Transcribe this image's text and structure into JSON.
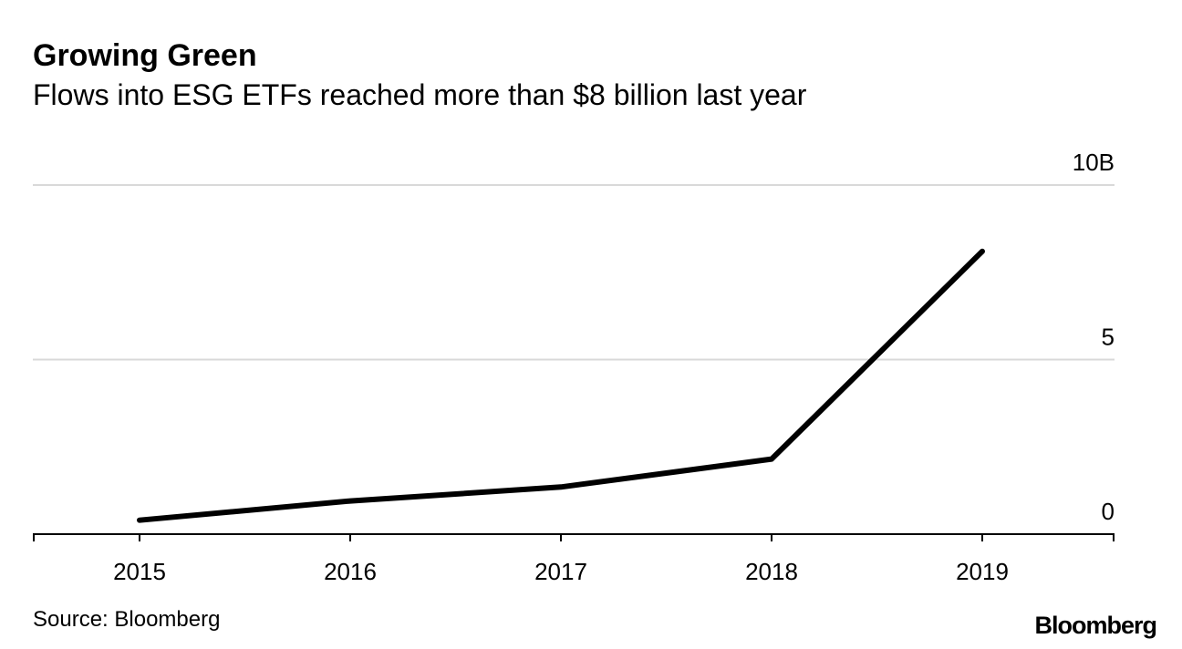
{
  "chart_data": {
    "type": "line",
    "title": "Growing Green",
    "subtitle": "Flows into ESG ETFs reached more than $8 billion last year",
    "categories": [
      "2015",
      "2016",
      "2017",
      "2018",
      "2019"
    ],
    "series": [
      {
        "name": "Flows into ESG ETFs",
        "color": "#000000",
        "values": [
          0.4,
          0.95,
          1.35,
          2.15,
          8.1
        ]
      }
    ],
    "xlabel": "",
    "ylabel": "",
    "ylim": [
      0,
      10
    ],
    "yticks": [
      0,
      5,
      10
    ],
    "ytick_labels": [
      "0",
      "5",
      "10B"
    ],
    "grid": true,
    "axis_side": "right"
  },
  "source": "Source: Bloomberg",
  "logo": "Bloomberg",
  "colors": {
    "line": "#000000",
    "grid": "#d9d9d9",
    "axis": "#000000",
    "text": "#000000"
  }
}
